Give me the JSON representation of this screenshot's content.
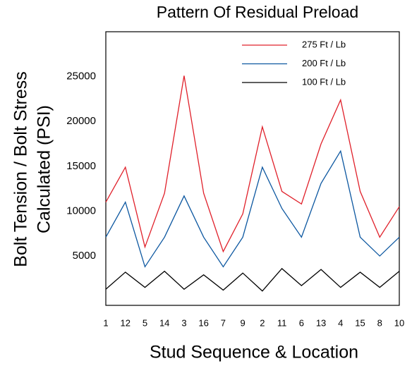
{
  "chart_data": {
    "type": "line",
    "title": "Pattern Of Residual Preload",
    "xlabel": "Stud Sequence & Location",
    "ylabel": [
      "Bolt Tension / Bolt Stress",
      "Calculated (PSI)"
    ],
    "categories": [
      "1",
      "12",
      "5",
      "14",
      "3",
      "16",
      "7",
      "9",
      "2",
      "11",
      "6",
      "13",
      "4",
      "15",
      "8",
      "10"
    ],
    "series": [
      {
        "name": "275 Ft / Lb",
        "color": "#e0202a",
        "values": [
          11000,
          14900,
          6000,
          12000,
          25100,
          12000,
          5500,
          9700,
          19400,
          12200,
          10800,
          17500,
          22400,
          12200,
          7100,
          10500
        ]
      },
      {
        "name": "200 Ft / Lb",
        "color": "#0c57a0",
        "values": [
          7100,
          11000,
          3800,
          7100,
          11700,
          7100,
          3800,
          7100,
          14900,
          10300,
          7100,
          13100,
          16700,
          7100,
          5000,
          7100
        ]
      },
      {
        "name": "100 Ft / Lb",
        "color": "#000000",
        "values": [
          1300,
          3200,
          1500,
          3300,
          1300,
          2900,
          1200,
          3100,
          1100,
          3600,
          1700,
          3500,
          1500,
          3200,
          1500,
          3300
        ]
      }
    ],
    "ylim": [
      -500,
      30000
    ],
    "yticks": [
      5000,
      10000,
      15000,
      20000,
      25000
    ],
    "grid": false,
    "legend": "upper right"
  }
}
